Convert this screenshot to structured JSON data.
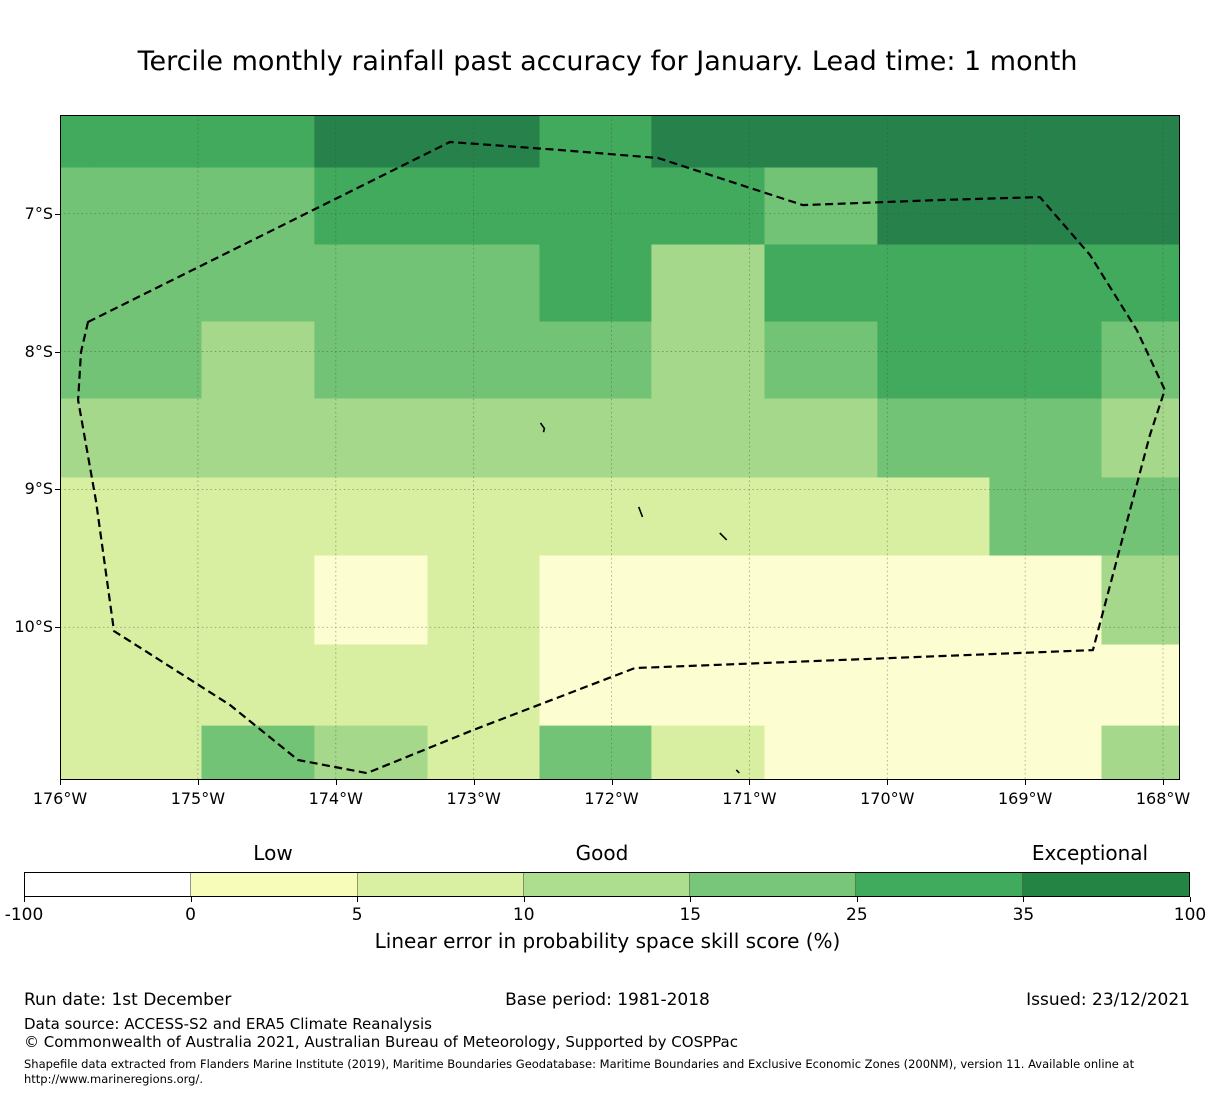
{
  "title": "Tercile monthly rainfall past accuracy for January. Lead time: 1 month",
  "chart_data": {
    "type": "heatmap",
    "subtype": "gridded geographic skill map with dashed EEZ outline",
    "title": "Tercile monthly rainfall past accuracy for January. Lead time: 1 month",
    "x_axis": {
      "tick_labels": [
        "176°W",
        "175°W",
        "174°W",
        "173°W",
        "172°W",
        "171°W",
        "170°W",
        "169°W",
        "168°W"
      ],
      "tick_values": [
        -176,
        -175,
        -174,
        -173,
        -172,
        -171,
        -170,
        -169,
        -168
      ],
      "range": [
        -176.0,
        -167.877
      ],
      "grid": true
    },
    "y_axis": {
      "tick_labels": [
        "7°S",
        "8°S",
        "9°S",
        "10°S"
      ],
      "tick_values": [
        -7,
        -8,
        -9,
        -10
      ],
      "range": [
        -6.285,
        -11.107
      ],
      "grid": true
    },
    "map_palette": [
      "#ffffff",
      "#fdfdd2",
      "#d8efa1",
      "#a5d88a",
      "#73c376",
      "#41aa5c",
      "#26814a"
    ],
    "grid": {
      "lon_edges": [
        -176.0,
        -175.782,
        -174.97,
        -174.151,
        -173.331,
        -172.519,
        -171.707,
        -170.887,
        -170.068,
        -169.256,
        -168.443,
        -167.877
      ],
      "lat_edges": [
        -6.285,
        -6.669,
        -7.228,
        -7.786,
        -8.344,
        -8.917,
        -9.483,
        -10.128,
        -10.716,
        -11.107
      ],
      "bin_values": [
        [
          5,
          5,
          5,
          6,
          6,
          5,
          6,
          6,
          6,
          6,
          6
        ],
        [
          4,
          4,
          4,
          5,
          5,
          5,
          5,
          4,
          6,
          6,
          6
        ],
        [
          4,
          4,
          4,
          4,
          4,
          5,
          3,
          5,
          5,
          5,
          5
        ],
        [
          4,
          4,
          3,
          4,
          4,
          4,
          3,
          4,
          5,
          5,
          4
        ],
        [
          3,
          3,
          3,
          3,
          3,
          3,
          3,
          3,
          4,
          4,
          3
        ],
        [
          2,
          2,
          2,
          2,
          2,
          2,
          2,
          2,
          2,
          4,
          4
        ],
        [
          2,
          2,
          2,
          1,
          2,
          1,
          1,
          1,
          1,
          1,
          3
        ],
        [
          2,
          2,
          2,
          2,
          2,
          1,
          1,
          1,
          1,
          1,
          1
        ],
        [
          2,
          2,
          4,
          3,
          2,
          4,
          2,
          1,
          1,
          1,
          3
        ]
      ]
    },
    "eez_path": [
      [
        -175.797,
        -7.786
      ],
      [
        -173.172,
        -6.481
      ],
      [
        -172.374,
        -6.539
      ],
      [
        -171.663,
        -6.597
      ],
      [
        -170.612,
        -6.938
      ],
      [
        -169.618,
        -6.901
      ],
      [
        -168.893,
        -6.88
      ],
      [
        -168.53,
        -7.3
      ],
      [
        -168.19,
        -7.844
      ],
      [
        -167.987,
        -8.279
      ],
      [
        -168.095,
        -8.606
      ],
      [
        -168.509,
        -10.165
      ],
      [
        -171.649,
        -10.288
      ],
      [
        -171.83,
        -10.295
      ],
      [
        -173.005,
        -10.745
      ],
      [
        -173.774,
        -11.057
      ],
      [
        -174.274,
        -10.962
      ],
      [
        -174.767,
        -10.563
      ],
      [
        -175.391,
        -10.165
      ],
      [
        -175.608,
        -10.027
      ],
      [
        -175.739,
        -9.084
      ],
      [
        -175.869,
        -8.352
      ],
      [
        -175.848,
        -8.004
      ]
    ],
    "islands": [
      {
        "points": [
          [
            -172.515,
            -8.518
          ],
          [
            -172.487,
            -8.558
          ],
          [
            -172.493,
            -8.585
          ]
        ]
      },
      {
        "points": [
          [
            -171.803,
            -9.127
          ],
          [
            -171.775,
            -9.2
          ]
        ]
      },
      {
        "points": [
          [
            -171.215,
            -9.316
          ],
          [
            -171.165,
            -9.366
          ]
        ]
      },
      {
        "points": [
          [
            -171.095,
            -11.034
          ],
          [
            -171.073,
            -11.056
          ]
        ]
      }
    ],
    "colorbar": {
      "boundaries": [
        -100,
        0,
        5,
        10,
        15,
        25,
        35,
        100
      ],
      "tick_labels": [
        "-100",
        "0",
        "5",
        "10",
        "15",
        "25",
        "35",
        "100"
      ],
      "colors": [
        "#ffffff",
        "#f7fcb9",
        "#d9f0a3",
        "#addd8e",
        "#78c679",
        "#41ab5d",
        "#238443"
      ],
      "label": "Linear error in probability space skill score (%)"
    },
    "legend_labels": [
      "Low",
      "Good",
      "Exceptional"
    ]
  },
  "footer": {
    "run_date": "Run date: 1st December",
    "base_period": "Base period: 1981-2018",
    "issued": "Issued: 23/12/2021",
    "data_source": "Data source: ACCESS-S2 and ERA5 Climate Reanalysis",
    "copyright": "© Commonwealth of Australia 2021, Australian Bureau of Meteorology, Supported by COSPPac",
    "shapefile_note": "Shapefile data extracted from Flanders Marine Institute (2019), Maritime Boundaries Geodatabase: Maritime Boundaries and Exclusive Economic Zones (200NM), version 11. Available online at",
    "shapefile_url": "http://www.marineregions.org/."
  }
}
